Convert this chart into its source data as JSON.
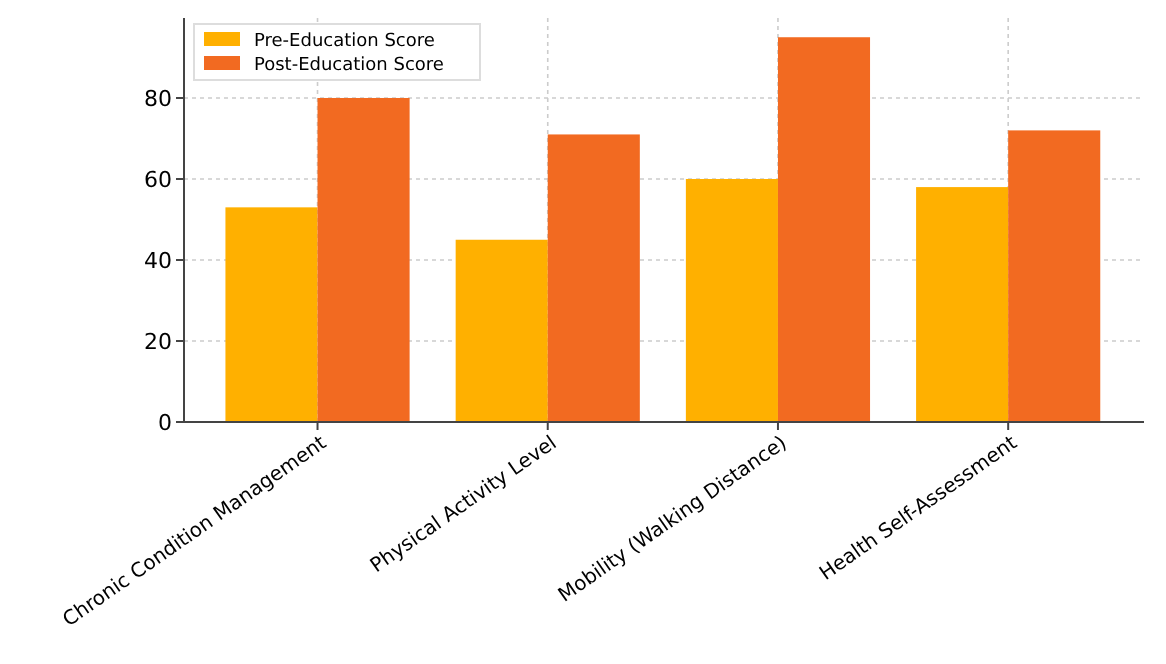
{
  "chart_data": {
    "type": "bar",
    "categories": [
      "Chronic Condition Management",
      "Physical Activity Level",
      "Mobility (Walking Distance)",
      "Health Self-Assessment"
    ],
    "series": [
      {
        "name": "Pre-Education Score",
        "color": "#ffb000",
        "values": [
          53,
          45,
          60,
          58
        ]
      },
      {
        "name": "Post-Education Score",
        "color": "#f26a21",
        "values": [
          80,
          71,
          95,
          72
        ]
      }
    ],
    "ylim": [
      0,
      99.75
    ],
    "yticks": [
      0,
      20,
      40,
      60,
      80
    ],
    "grid": true,
    "legend": "top left"
  }
}
